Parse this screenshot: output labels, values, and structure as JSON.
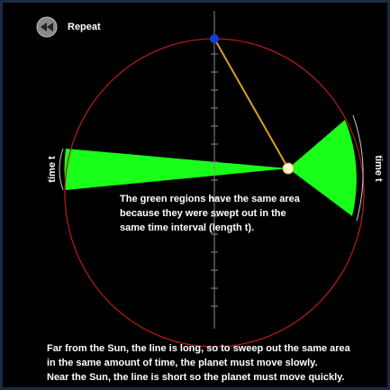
{
  "button": {
    "label": "Repeat"
  },
  "time_labels": {
    "left": "time t",
    "right": "time t"
  },
  "caption": {
    "lines": [
      "The green regions have the same area",
      "because they were swept out in the",
      "same time interval (length t)."
    ]
  },
  "explanation": {
    "lines": [
      "Far from the Sun, the line is long, so to sweep out the same area",
      "in the same amount of time, the planet must move slowly.",
      "Near the Sun, the line is short so the planet must move quickly."
    ]
  }
}
